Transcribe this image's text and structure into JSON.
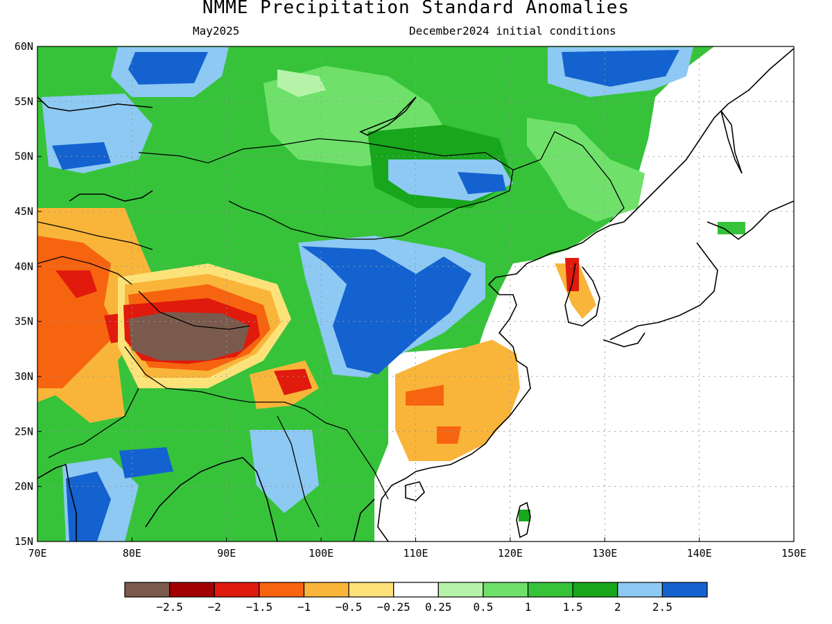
{
  "header": {
    "title": "NMME Precipitation Standard Anomalies",
    "target_month": "May2025",
    "init_conditions": "December2024 initial conditions"
  },
  "map": {
    "lon_range": [
      70,
      150
    ],
    "lat_range": [
      15,
      60
    ],
    "lon_ticks": [
      "70E",
      "80E",
      "90E",
      "100E",
      "110E",
      "120E",
      "130E",
      "140E",
      "150E"
    ],
    "lat_ticks": [
      "15N",
      "20N",
      "25N",
      "30N",
      "35N",
      "40N",
      "45N",
      "50N",
      "55N",
      "60N"
    ],
    "grid_lon": [
      80,
      90,
      100,
      110,
      120,
      130,
      140
    ],
    "grid_lat": [
      20,
      25,
      30,
      35,
      40,
      45,
      50,
      55
    ],
    "ocean_color": "#ffffff",
    "coastline_color": "#000000",
    "features": [
      {
        "name": "tibet-strong-dry",
        "level": "<-2.5",
        "lon": 84.5,
        "lat": 33.5,
        "rx": 5.6,
        "ry": 2.2
      },
      {
        "name": "north-china-wet-core",
        "level": ">2.5",
        "lon": 108.5,
        "lat": 35.5,
        "rx": 6.3,
        "ry": 4.5
      },
      {
        "name": "south-china-dry",
        "level": "-1",
        "lon": 113.5,
        "lat": 28.5,
        "rx": 4.8,
        "ry": 2.8
      },
      {
        "name": "korea-dry",
        "level": "-2",
        "lon": 127.0,
        "lat": 38.5,
        "rx": 0.6,
        "ry": 1.2
      }
    ]
  },
  "colorbar": {
    "colors": [
      "#7a5a4c",
      "#a00000",
      "#e01a0c",
      "#f76410",
      "#f9b53a",
      "#fde27a",
      "#ffffff",
      "#b6f3a8",
      "#6fe16a",
      "#36c33a",
      "#18a61c",
      "#8dc9f2",
      "#1462cf"
    ],
    "labels": [
      "−2.5",
      "−2",
      "−1.5",
      "−1",
      "−0.5",
      "−0.25",
      "0.25",
      "0.5",
      "1",
      "1.5",
      "2",
      "2.5"
    ]
  }
}
